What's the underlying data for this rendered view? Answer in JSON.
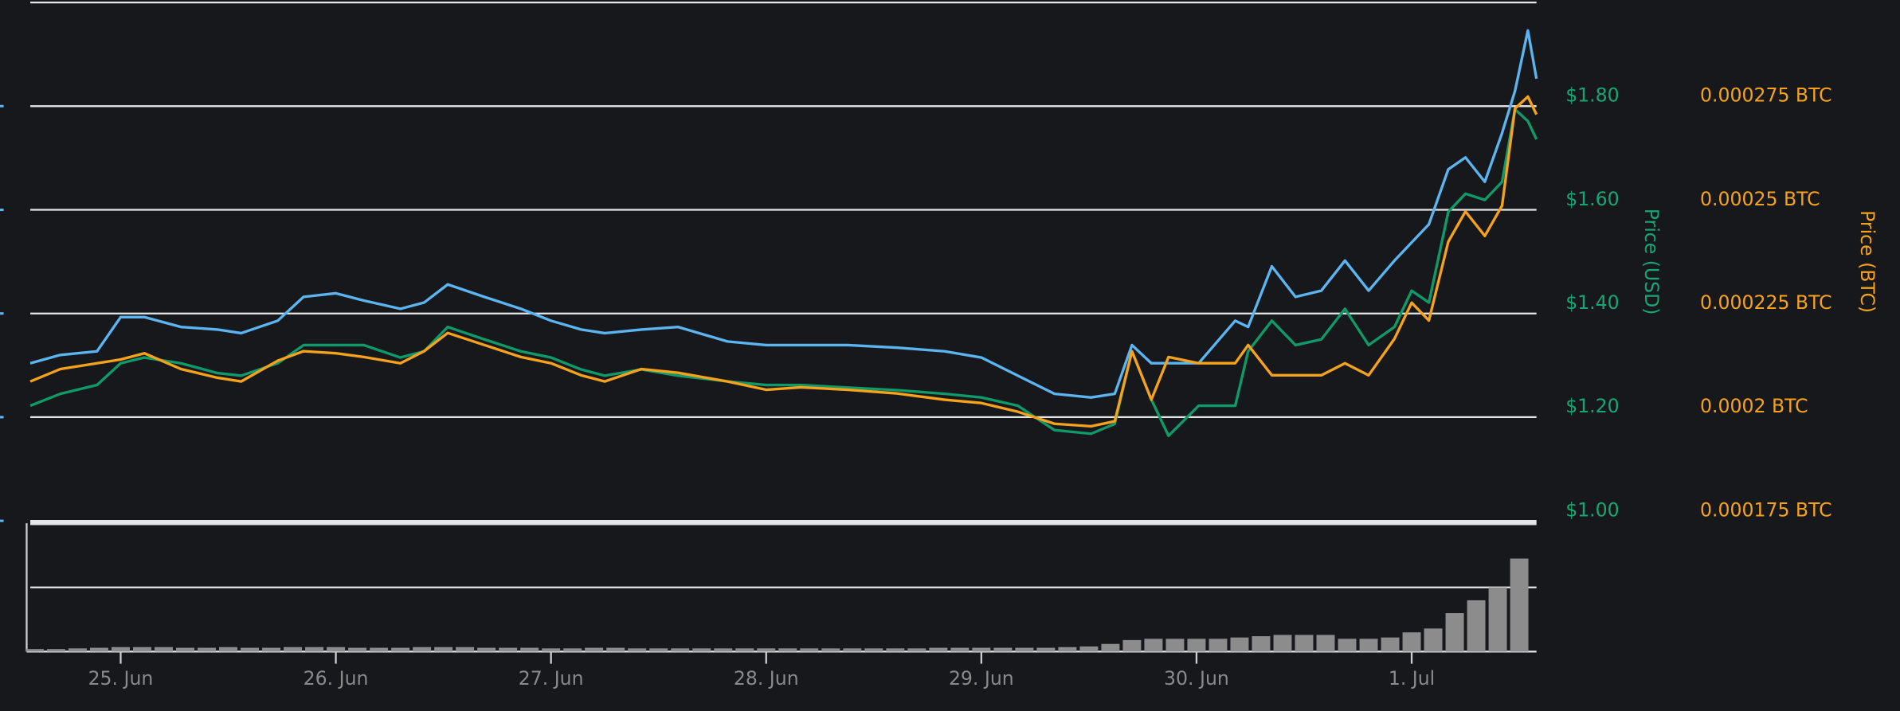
{
  "chart_data": [
    {
      "type": "line",
      "ylabel": "Price (USD)",
      "y2label": "Price (BTC)",
      "xlim": [
        24.58,
        31.58
      ],
      "xticks": [
        {
          "value": 25,
          "label": "25. Jun"
        },
        {
          "value": 26,
          "label": "26. Jun"
        },
        {
          "value": 27,
          "label": "27. Jun"
        },
        {
          "value": 28,
          "label": "28. Jun"
        },
        {
          "value": 29,
          "label": "29. Jun"
        },
        {
          "value": 30,
          "label": "30. Jun"
        },
        {
          "value": 31,
          "label": "1. Jul"
        }
      ],
      "ylim": [
        1.0,
        2.0
      ],
      "yticks": [
        {
          "value": 1.0,
          "label": "$1.00"
        },
        {
          "value": 1.2,
          "label": "$1.20"
        },
        {
          "value": 1.4,
          "label": "$1.40"
        },
        {
          "value": 1.6,
          "label": "$1.60"
        },
        {
          "value": 1.8,
          "label": "$1.80"
        }
      ],
      "y2lim": [
        0.000175,
        0.0003
      ],
      "y2ticks": [
        {
          "value": 0.000175,
          "label": "0.000175 BTC"
        },
        {
          "value": 0.0002,
          "label": "0.0002 BTC"
        },
        {
          "value": 0.000225,
          "label": "0.000225 BTC"
        },
        {
          "value": 0.00025,
          "label": "0.00025 BTC"
        },
        {
          "value": 0.000275,
          "label": "0.000275 BTC"
        }
      ],
      "ycolor": "#17a673",
      "y2color": "#f7a21b",
      "grid": true,
      "x": [
        24.58,
        24.72,
        24.89,
        25.0,
        25.11,
        25.28,
        25.45,
        25.56,
        25.73,
        25.85,
        26.0,
        26.13,
        26.3,
        26.41,
        26.52,
        26.69,
        26.86,
        27.0,
        27.14,
        27.25,
        27.42,
        27.59,
        27.82,
        28.0,
        28.16,
        28.38,
        28.61,
        28.83,
        29.0,
        29.17,
        29.34,
        29.51,
        29.62,
        29.7,
        29.79,
        29.87,
        30.01,
        30.18,
        30.24,
        30.35,
        30.46,
        30.58,
        30.69,
        30.8,
        30.92,
        31.0,
        31.08,
        31.17,
        31.25,
        31.34,
        31.42,
        31.48,
        31.54,
        31.58
      ],
      "series": [
        {
          "color": "#5bb5f0",
          "values": [
            1.304,
            1.32,
            1.327,
            1.393,
            1.393,
            1.374,
            1.369,
            1.362,
            1.386,
            1.432,
            1.439,
            1.425,
            1.409,
            1.421,
            1.456,
            1.432,
            1.409,
            1.386,
            1.369,
            1.362,
            1.369,
            1.374,
            1.346,
            1.339,
            1.339,
            1.339,
            1.334,
            1.327,
            1.315,
            1.28,
            1.245,
            1.238,
            1.245,
            1.339,
            1.304,
            1.304,
            1.304,
            1.386,
            1.374,
            1.491,
            1.432,
            1.444,
            1.502,
            1.444,
            1.502,
            1.537,
            1.572,
            1.678,
            1.701,
            1.654,
            1.748,
            1.829,
            1.946,
            1.853
          ]
        },
        {
          "color": "#0f9a6a",
          "values": [
            1.222,
            1.245,
            1.262,
            1.304,
            1.315,
            1.304,
            1.285,
            1.28,
            1.304,
            1.339,
            1.339,
            1.339,
            1.315,
            1.327,
            1.374,
            1.35,
            1.327,
            1.315,
            1.292,
            1.28,
            1.292,
            1.28,
            1.269,
            1.262,
            1.262,
            1.257,
            1.252,
            1.245,
            1.238,
            1.222,
            1.175,
            1.168,
            1.187,
            1.327,
            1.234,
            1.164,
            1.222,
            1.222,
            1.327,
            1.386,
            1.339,
            1.35,
            1.409,
            1.339,
            1.374,
            1.444,
            1.421,
            1.596,
            1.631,
            1.619,
            1.654,
            1.794,
            1.771,
            1.736
          ]
        },
        {
          "color": "#f7a21b",
          "axis": "y2",
          "values": [
            0.0002086,
            0.0002116,
            0.000213,
            0.0002139,
            0.0002154,
            0.0002116,
            0.0002095,
            0.0002086,
            0.0002136,
            0.0002159,
            0.0002154,
            0.0002145,
            0.000213,
            0.0002159,
            0.0002203,
            0.0002174,
            0.0002145,
            0.000213,
            0.0002101,
            0.0002086,
            0.0002116,
            0.0002107,
            0.0002086,
            0.0002066,
            0.0002072,
            0.0002066,
            0.0002057,
            0.0002042,
            0.0002034,
            0.0002013,
            0.0001984,
            0.0001978,
            0.000199,
            0.0002159,
            0.0002042,
            0.0002145,
            0.000213,
            0.000213,
            0.0002174,
            0.0002101,
            0.0002101,
            0.0002101,
            0.000213,
            0.0002101,
            0.0002189,
            0.0002276,
            0.0002233,
            0.0002423,
            0.0002496,
            0.0002437,
            0.000251,
            0.0002744,
            0.0002773,
            0.000273
          ]
        }
      ]
    },
    {
      "type": "bar",
      "xlim": [
        24.58,
        31.58
      ],
      "ylim": [
        0,
        2
      ],
      "yticks": [
        1,
        2
      ],
      "grid": true,
      "color": "#8c8c8c",
      "x": [
        24.6,
        24.7,
        24.8,
        24.9,
        25.0,
        25.1,
        25.2,
        25.3,
        25.4,
        25.5,
        25.6,
        25.7,
        25.8,
        25.9,
        26.0,
        26.1,
        26.2,
        26.3,
        26.4,
        26.5,
        26.6,
        26.7,
        26.8,
        26.9,
        27.0,
        27.1,
        27.2,
        27.3,
        27.4,
        27.5,
        27.6,
        27.7,
        27.8,
        27.9,
        28.0,
        28.1,
        28.2,
        28.3,
        28.4,
        28.5,
        28.6,
        28.7,
        28.8,
        28.9,
        29.0,
        29.1,
        29.2,
        29.3,
        29.4,
        29.5,
        29.6,
        29.7,
        29.8,
        29.9,
        30.0,
        30.1,
        30.2,
        30.3,
        30.4,
        30.5,
        30.6,
        30.7,
        30.8,
        30.9,
        31.0,
        31.1,
        31.2,
        31.3,
        31.4,
        31.5
      ],
      "values": [
        0.04,
        0.04,
        0.05,
        0.06,
        0.07,
        0.07,
        0.07,
        0.06,
        0.06,
        0.07,
        0.06,
        0.06,
        0.07,
        0.07,
        0.07,
        0.06,
        0.06,
        0.06,
        0.07,
        0.07,
        0.07,
        0.06,
        0.06,
        0.06,
        0.05,
        0.05,
        0.06,
        0.06,
        0.05,
        0.05,
        0.05,
        0.05,
        0.05,
        0.05,
        0.05,
        0.05,
        0.05,
        0.05,
        0.05,
        0.05,
        0.05,
        0.05,
        0.06,
        0.06,
        0.06,
        0.06,
        0.06,
        0.06,
        0.07,
        0.08,
        0.12,
        0.18,
        0.2,
        0.2,
        0.2,
        0.2,
        0.22,
        0.24,
        0.26,
        0.26,
        0.26,
        0.2,
        0.2,
        0.22,
        0.3,
        0.36,
        0.6,
        0.8,
        1.0,
        1.45
      ]
    }
  ]
}
